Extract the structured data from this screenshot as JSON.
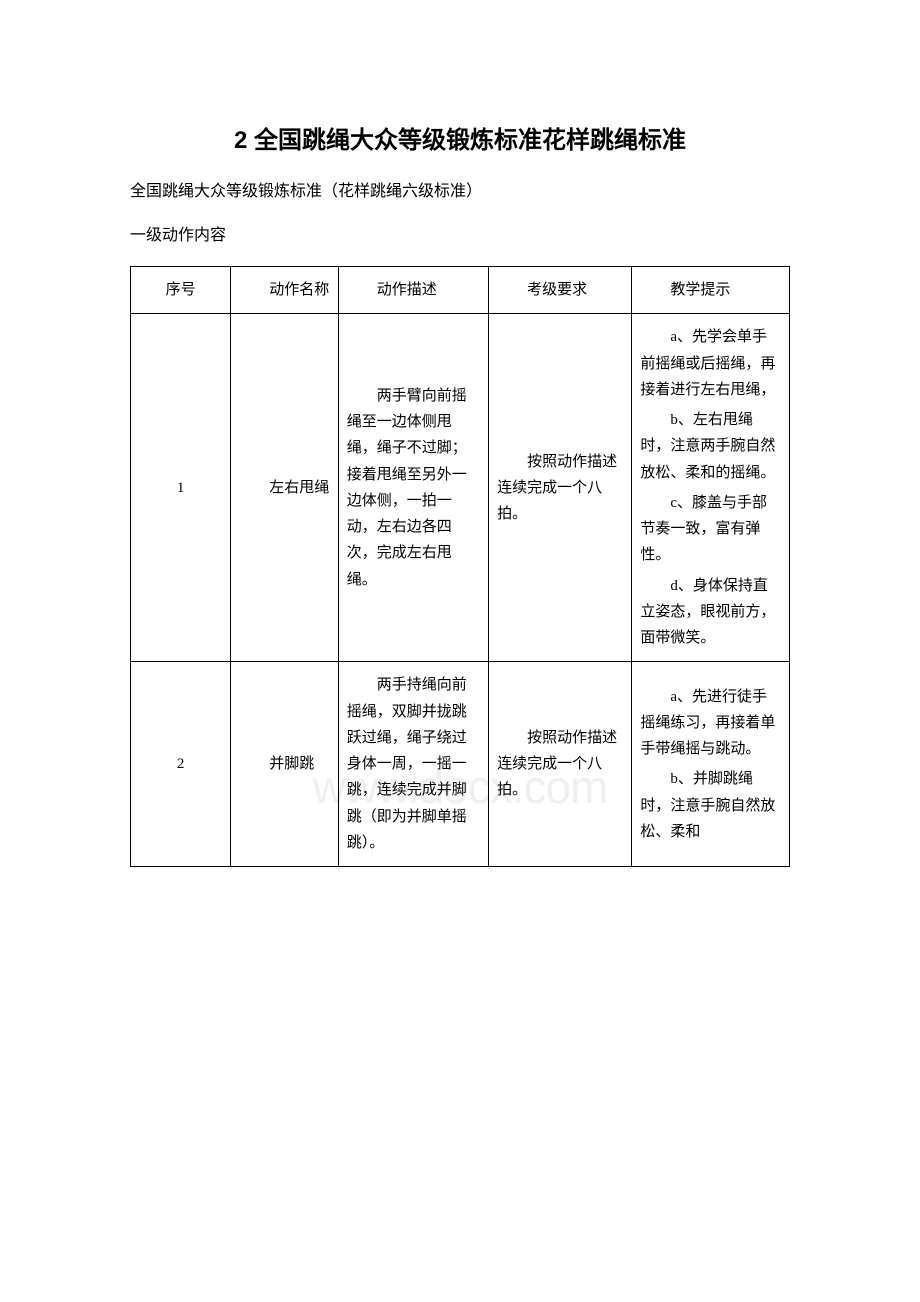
{
  "title": "2 全国跳绳大众等级锻炼标准花样跳绳标准",
  "subtitle": "全国跳绳大众等级锻炼标准（花样跳绳六级标准）",
  "section_label": "一级动作内容",
  "watermark": "www.docx.com",
  "table": {
    "headers": {
      "col1": "序号",
      "col2": "动作名称",
      "col3": "动作描述",
      "col4": "考级要求",
      "col5": "教学提示"
    },
    "rows": [
      {
        "num": "1",
        "name": "左右甩绳",
        "desc": "两手臂向前摇绳至一边体侧甩绳，绳子不过脚；接着甩绳至另外一边体侧，一拍一动，左右边各四次，完成左右甩绳。",
        "req": "按照动作描述连续完成一个八拍。",
        "tips": {
          "a": "a、先学会单手前摇绳或后摇绳，再接着进行左右甩绳，",
          "b": "b、左右甩绳时，注意两手腕自然放松、柔和的摇绳。",
          "c": "c、膝盖与手部节奏一致，富有弹性。",
          "d": "d、身体保持直立姿态，眼视前方，面带微笑。"
        }
      },
      {
        "num": "2",
        "name": "并脚跳",
        "desc": "两手持绳向前摇绳，双脚并拢跳跃过绳，绳子绕过身体一周，一摇一跳，连续完成并脚跳（即为并脚单摇跳）。",
        "req": "按照动作描述连续完成一个八拍。",
        "tips": {
          "a": "a、先进行徒手摇绳练习，再接着单手带绳摇与跳动。",
          "b": "b、并脚跳绳时，注意手腕自然放松、柔和"
        }
      }
    ]
  }
}
